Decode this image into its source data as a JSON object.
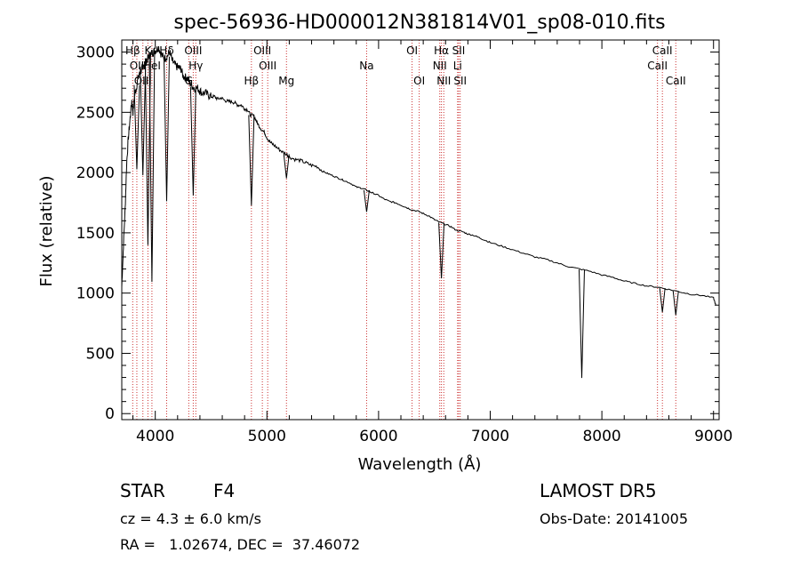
{
  "chart_data": {
    "type": "line",
    "title": "spec-56936-HD000012N381814V01_sp08-010.fits",
    "xlabel": "Wavelength (Å)",
    "ylabel": "Flux (relative)",
    "xlim": [
      3700,
      9050
    ],
    "ylim": [
      -50,
      3100
    ],
    "xticks": [
      4000,
      5000,
      6000,
      7000,
      8000,
      9000
    ],
    "yticks": [
      0,
      500,
      1000,
      1500,
      2000,
      2500,
      3000
    ],
    "grid": false,
    "series": [
      {
        "color": "#000000",
        "points": [
          [
            3700,
            1050
          ],
          [
            3715,
            1400
          ],
          [
            3730,
            1700
          ],
          [
            3745,
            2100
          ],
          [
            3760,
            2300
          ],
          [
            3775,
            2450
          ],
          [
            3790,
            2600
          ],
          [
            3800,
            2500
          ],
          [
            3815,
            2650
          ],
          [
            3830,
            2700
          ],
          [
            3845,
            2780
          ],
          [
            3860,
            2820
          ],
          [
            3875,
            2850
          ],
          [
            3890,
            2880
          ],
          [
            3905,
            2900
          ],
          [
            3920,
            2920
          ],
          [
            3935,
            2950
          ],
          [
            3950,
            2970
          ],
          [
            3965,
            2990
          ],
          [
            3980,
            3000
          ],
          [
            3995,
            3010
          ],
          [
            4010,
            3020
          ],
          [
            4030,
            3040
          ],
          [
            4050,
            2990
          ],
          [
            4070,
            2960
          ],
          [
            4090,
            2950
          ],
          [
            4110,
            2970
          ],
          [
            4130,
            3000
          ],
          [
            4150,
            2930
          ],
          [
            4170,
            2900
          ],
          [
            4190,
            2880
          ],
          [
            4210,
            2870
          ],
          [
            4230,
            2860
          ],
          [
            4250,
            2800
          ],
          [
            4270,
            2790
          ],
          [
            4290,
            2780
          ],
          [
            4310,
            2740
          ],
          [
            4330,
            2720
          ],
          [
            4350,
            2700
          ],
          [
            4380,
            2700
          ],
          [
            4400,
            2680
          ],
          [
            4420,
            2660
          ],
          [
            4450,
            2660
          ],
          [
            4480,
            2640
          ],
          [
            4500,
            2630
          ],
          [
            4530,
            2630
          ],
          [
            4560,
            2610
          ],
          [
            4590,
            2620
          ],
          [
            4620,
            2600
          ],
          [
            4650,
            2590
          ],
          [
            4680,
            2590
          ],
          [
            4710,
            2580
          ],
          [
            4740,
            2560
          ],
          [
            4770,
            2560
          ],
          [
            4800,
            2530
          ],
          [
            4830,
            2520
          ],
          [
            4850,
            2480
          ],
          [
            4880,
            2470
          ],
          [
            4900,
            2440
          ],
          [
            4920,
            2400
          ],
          [
            4950,
            2360
          ],
          [
            4980,
            2330
          ],
          [
            5000,
            2290
          ],
          [
            5030,
            2250
          ],
          [
            5060,
            2230
          ],
          [
            5100,
            2200
          ],
          [
            5140,
            2170
          ],
          [
            5180,
            2150
          ],
          [
            5200,
            2130
          ],
          [
            5250,
            2110
          ],
          [
            5300,
            2100
          ],
          [
            5350,
            2080
          ],
          [
            5400,
            2060
          ],
          [
            5450,
            2050
          ],
          [
            5500,
            2010
          ],
          [
            5550,
            1990
          ],
          [
            5600,
            1970
          ],
          [
            5650,
            1950
          ],
          [
            5700,
            1930
          ],
          [
            5750,
            1910
          ],
          [
            5800,
            1880
          ],
          [
            5850,
            1870
          ],
          [
            5880,
            1860
          ],
          [
            5920,
            1840
          ],
          [
            5950,
            1830
          ],
          [
            6000,
            1810
          ],
          [
            6050,
            1780
          ],
          [
            6100,
            1760
          ],
          [
            6150,
            1750
          ],
          [
            6200,
            1730
          ],
          [
            6250,
            1710
          ],
          [
            6300,
            1690
          ],
          [
            6350,
            1680
          ],
          [
            6400,
            1660
          ],
          [
            6450,
            1640
          ],
          [
            6500,
            1610
          ],
          [
            6540,
            1590
          ],
          [
            6600,
            1570
          ],
          [
            6650,
            1550
          ],
          [
            6700,
            1520
          ],
          [
            6750,
            1510
          ],
          [
            6800,
            1490
          ],
          [
            6850,
            1480
          ],
          [
            6900,
            1460
          ],
          [
            6950,
            1440
          ],
          [
            7000,
            1420
          ],
          [
            7100,
            1390
          ],
          [
            7200,
            1360
          ],
          [
            7300,
            1330
          ],
          [
            7400,
            1300
          ],
          [
            7500,
            1280
          ],
          [
            7600,
            1250
          ],
          [
            7700,
            1220
          ],
          [
            7800,
            1200
          ],
          [
            7900,
            1180
          ],
          [
            8000,
            1150
          ],
          [
            8100,
            1130
          ],
          [
            8200,
            1100
          ],
          [
            8300,
            1080
          ],
          [
            8400,
            1060
          ],
          [
            8500,
            1050
          ],
          [
            8600,
            1030
          ],
          [
            8700,
            1010
          ],
          [
            8800,
            990
          ],
          [
            8900,
            980
          ],
          [
            9000,
            960
          ],
          [
            9020,
            900
          ]
        ]
      }
    ],
    "absorption": [
      {
        "x": 3835,
        "depth": 700
      },
      {
        "x": 3889,
        "depth": 900
      },
      {
        "x": 3934,
        "depth": 1550
      },
      {
        "x": 3970,
        "depth": 1900
      },
      {
        "x": 4102,
        "depth": 1200
      },
      {
        "x": 4340,
        "depth": 900
      },
      {
        "x": 4861,
        "depth": 750
      },
      {
        "x": 5175,
        "depth": 200
      },
      {
        "x": 5893,
        "depth": 180
      },
      {
        "x": 6563,
        "depth": 460
      },
      {
        "x": 7820,
        "depth": 900
      },
      {
        "x": 8542,
        "depth": 200
      },
      {
        "x": 8662,
        "depth": 200
      }
    ],
    "line_markers": [
      {
        "x": 3798,
        "label": "Hβ",
        "tier": 0
      },
      {
        "x": 3835,
        "label": "OII",
        "tier": 1
      },
      {
        "x": 3889,
        "label": "OIII",
        "tier": 2
      },
      {
        "x": 3934,
        "label": "K",
        "tier": 0
      },
      {
        "x": 3970,
        "label": "HeI",
        "tier": 1
      },
      {
        "x": 4102,
        "label": "Hδ",
        "tier": 0
      },
      {
        "x": 4340,
        "label": "OIII",
        "tier": 0
      },
      {
        "x": 4363,
        "label": "Hγ",
        "tier": 1
      },
      {
        "x": 4300,
        "label": "G",
        "tier": 2
      },
      {
        "x": 4861,
        "label": "Hβ",
        "tier": 2
      },
      {
        "x": 4959,
        "label": "OIII",
        "tier": 0
      },
      {
        "x": 5007,
        "label": "OIII",
        "tier": 1
      },
      {
        "x": 5175,
        "label": "Mg",
        "tier": 2
      },
      {
        "x": 5893,
        "label": "Na",
        "tier": 1
      },
      {
        "x": 6300,
        "label": "OI",
        "tier": 0
      },
      {
        "x": 6364,
        "label": "OI",
        "tier": 2
      },
      {
        "x": 6548,
        "label": "NII",
        "tier": 1
      },
      {
        "x": 6563,
        "label": "Hα",
        "tier": 0
      },
      {
        "x": 6584,
        "label": "NII",
        "tier": 2
      },
      {
        "x": 6708,
        "label": "Li",
        "tier": 1
      },
      {
        "x": 6717,
        "label": "SII",
        "tier": 0
      },
      {
        "x": 6731,
        "label": "SII",
        "tier": 2
      },
      {
        "x": 8498,
        "label": "CaII",
        "tier": 1
      },
      {
        "x": 8542,
        "label": "CaII",
        "tier": 0
      },
      {
        "x": 8662,
        "label": "CaII",
        "tier": 2
      }
    ]
  },
  "info": {
    "star_type": "STAR",
    "subclass": "F4",
    "cz": "cz = 4.3 ± 6.0 km/s",
    "coords": "RA =   1.02674, DEC =  37.46072",
    "survey": "LAMOST DR5",
    "obs_date": "Obs-Date: 20141005"
  }
}
